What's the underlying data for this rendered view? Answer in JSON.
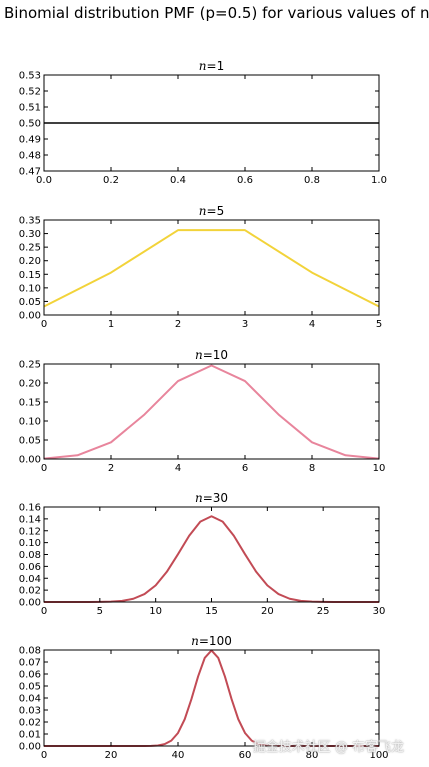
{
  "figure_title": "Binomial distribution PMF (p=0.5) for various values of n",
  "watermark": "掘金技术社区 @ 布客飞龙",
  "chart_data": [
    {
      "type": "line",
      "title": "n=1",
      "title_var": "n",
      "title_rest": "=1",
      "color": "#000000",
      "xlim": [
        0.0,
        1.0
      ],
      "ylim": [
        0.47,
        0.53
      ],
      "xticks": [
        0.0,
        0.2,
        0.4,
        0.6,
        0.8,
        1.0
      ],
      "xtick_labels": [
        "0.0",
        "0.2",
        "0.4",
        "0.6",
        "0.8",
        "1.0"
      ],
      "yticks": [
        0.47,
        0.48,
        0.49,
        0.5,
        0.51,
        0.52,
        0.53
      ],
      "ytick_labels": [
        "0.47",
        "0.48",
        "0.49",
        "0.50",
        "0.51",
        "0.52",
        "0.53"
      ],
      "x": [
        0,
        1
      ],
      "y": [
        0.5,
        0.5
      ]
    },
    {
      "type": "line",
      "title": "n=5",
      "title_var": "n",
      "title_rest": "=5",
      "color": "#f2d33a",
      "xlim": [
        0,
        5
      ],
      "ylim": [
        0.0,
        0.35
      ],
      "xticks": [
        0,
        1,
        2,
        3,
        4,
        5
      ],
      "xtick_labels": [
        "0",
        "1",
        "2",
        "3",
        "4",
        "5"
      ],
      "yticks": [
        0.0,
        0.05,
        0.1,
        0.15,
        0.2,
        0.25,
        0.3,
        0.35
      ],
      "ytick_labels": [
        "0.00",
        "0.05",
        "0.10",
        "0.15",
        "0.20",
        "0.25",
        "0.30",
        "0.35"
      ],
      "x": [
        0,
        1,
        2,
        3,
        4,
        5
      ],
      "y": [
        0.03125,
        0.15625,
        0.3125,
        0.3125,
        0.15625,
        0.03125
      ]
    },
    {
      "type": "line",
      "title": "n=10",
      "title_var": "n",
      "title_rest": "=10",
      "color": "#e8859c",
      "xlim": [
        0,
        10
      ],
      "ylim": [
        0.0,
        0.25
      ],
      "xticks": [
        0,
        2,
        4,
        6,
        8,
        10
      ],
      "xtick_labels": [
        "0",
        "2",
        "4",
        "6",
        "8",
        "10"
      ],
      "yticks": [
        0.0,
        0.05,
        0.1,
        0.15,
        0.2,
        0.25
      ],
      "ytick_labels": [
        "0.00",
        "0.05",
        "0.10",
        "0.15",
        "0.20",
        "0.25"
      ],
      "x": [
        0,
        1,
        2,
        3,
        4,
        5,
        6,
        7,
        8,
        9,
        10
      ],
      "y": [
        0.00098,
        0.00977,
        0.04395,
        0.11719,
        0.20508,
        0.24609,
        0.20508,
        0.11719,
        0.04395,
        0.00977,
        0.00098
      ]
    },
    {
      "type": "line",
      "title": "n=30",
      "title_var": "n",
      "title_rest": "=30",
      "color": "#c24b55",
      "xlim": [
        0,
        30
      ],
      "ylim": [
        0.0,
        0.16
      ],
      "xticks": [
        0,
        5,
        10,
        15,
        20,
        25,
        30
      ],
      "xtick_labels": [
        "0",
        "5",
        "10",
        "15",
        "20",
        "25",
        "30"
      ],
      "yticks": [
        0.0,
        0.02,
        0.04,
        0.06,
        0.08,
        0.1,
        0.12,
        0.14,
        0.16
      ],
      "ytick_labels": [
        "0.00",
        "0.02",
        "0.04",
        "0.06",
        "0.08",
        "0.10",
        "0.12",
        "0.14",
        "0.16"
      ],
      "x": [
        0,
        1,
        2,
        3,
        4,
        5,
        6,
        7,
        8,
        9,
        10,
        11,
        12,
        13,
        14,
        15,
        16,
        17,
        18,
        19,
        20,
        21,
        22,
        23,
        24,
        25,
        26,
        27,
        28,
        29,
        30
      ],
      "y": [
        0.0,
        0.0,
        0.0,
        0.0,
        3e-05,
        0.00013,
        0.00055,
        0.0019,
        0.00545,
        0.01332,
        0.02798,
        0.05088,
        0.08055,
        0.11153,
        0.13543,
        0.14446,
        0.13543,
        0.11153,
        0.08055,
        0.05088,
        0.02798,
        0.01332,
        0.00545,
        0.0019,
        0.00055,
        0.00013,
        3e-05,
        0.0,
        0.0,
        0.0,
        0.0
      ]
    },
    {
      "type": "line",
      "title": "n=100",
      "title_var": "n",
      "title_rest": "=100",
      "color": "#c24b55",
      "xlim": [
        0,
        100
      ],
      "ylim": [
        0.0,
        0.08
      ],
      "xticks": [
        0,
        20,
        40,
        60,
        80,
        100
      ],
      "xtick_labels": [
        "0",
        "20",
        "40",
        "60",
        "80",
        "100"
      ],
      "yticks": [
        0.0,
        0.01,
        0.02,
        0.03,
        0.04,
        0.05,
        0.06,
        0.07,
        0.08
      ],
      "ytick_labels": [
        "0.00",
        "0.01",
        "0.02",
        "0.03",
        "0.04",
        "0.05",
        "0.06",
        "0.07",
        "0.08"
      ],
      "x": [
        0,
        30,
        32,
        34,
        36,
        38,
        40,
        42,
        44,
        46,
        48,
        50,
        52,
        54,
        56,
        58,
        60,
        62,
        64,
        66,
        68,
        70,
        100
      ],
      "y": [
        0.0,
        2e-05,
        0.00011,
        0.00046,
        0.0016,
        0.00448,
        0.01084,
        0.02229,
        0.039,
        0.05796,
        0.07353,
        0.07959,
        0.07353,
        0.05796,
        0.039,
        0.02229,
        0.01084,
        0.00448,
        0.0016,
        0.00046,
        0.00011,
        2e-05,
        0.0
      ]
    }
  ]
}
